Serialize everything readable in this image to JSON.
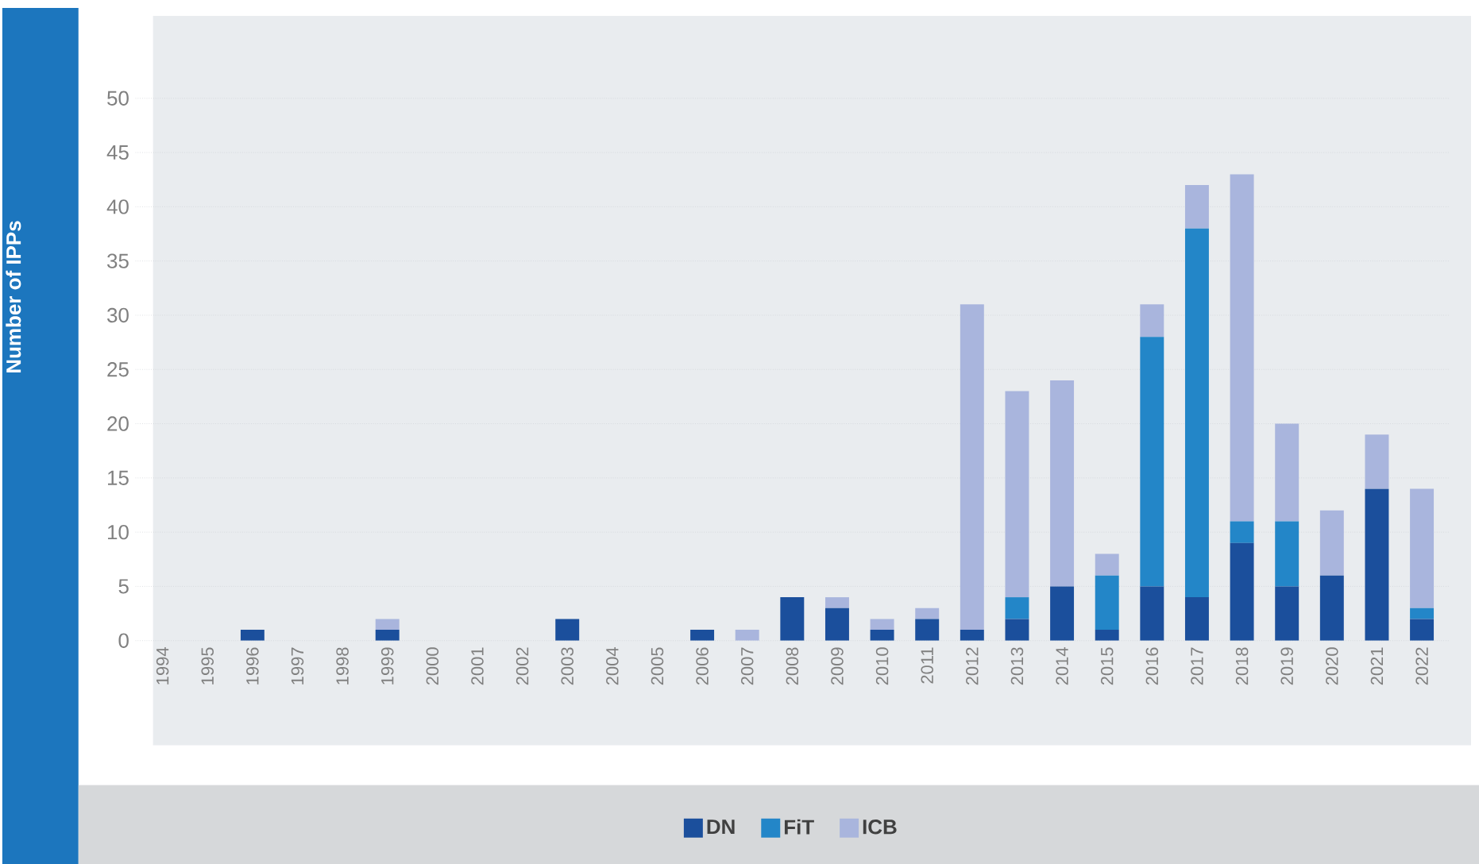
{
  "chart_data": {
    "type": "bar",
    "ylabel": "Number of IPPs",
    "stacked": true,
    "categories": [
      "1994",
      "1995",
      "1996",
      "1997",
      "1998",
      "1999",
      "2000",
      "2001",
      "2002",
      "2003",
      "2004",
      "2005",
      "2006",
      "2007",
      "2008",
      "2009",
      "2010",
      "2011",
      "2012",
      "2013",
      "2014",
      "2015",
      "2016",
      "2017",
      "2018",
      "2019",
      "2020",
      "2021",
      "2022"
    ],
    "series": [
      {
        "name": "DN",
        "color": "#1b4f9c",
        "values": [
          0,
          0,
          1,
          0,
          0,
          1,
          0,
          0,
          0,
          2,
          0,
          0,
          1,
          0,
          4,
          3,
          1,
          2,
          1,
          2,
          5,
          1,
          5,
          4,
          9,
          5,
          6,
          14,
          2
        ]
      },
      {
        "name": "FiT",
        "color": "#2386c8",
        "values": [
          0,
          0,
          0,
          0,
          0,
          0,
          0,
          0,
          0,
          0,
          0,
          0,
          0,
          0,
          0,
          0,
          0,
          0,
          0,
          2,
          0,
          5,
          23,
          34,
          2,
          6,
          0,
          0,
          1
        ]
      },
      {
        "name": "ICB",
        "color": "#a9b5dd",
        "values": [
          0,
          0,
          0,
          0,
          0,
          1,
          0,
          0,
          0,
          0,
          0,
          0,
          0,
          1,
          0,
          1,
          1,
          1,
          30,
          19,
          19,
          2,
          3,
          4,
          32,
          9,
          6,
          5,
          11
        ]
      }
    ],
    "ylim": [
      0,
      57.6
    ],
    "yticks": [
      0,
      5,
      10,
      15,
      20,
      25,
      30,
      35,
      40,
      45,
      50
    ],
    "grid": "y",
    "legend": "bottom"
  }
}
